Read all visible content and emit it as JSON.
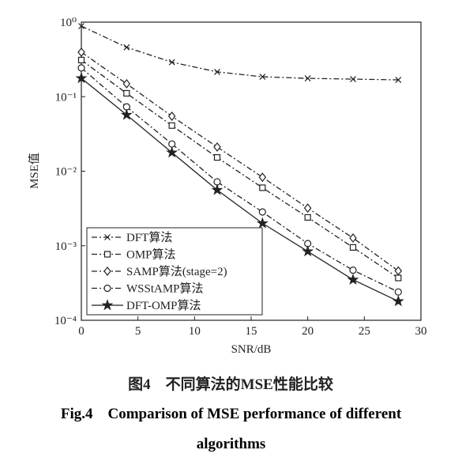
{
  "chart_data": {
    "type": "line",
    "x_label": "SNR/dB",
    "y_label": "MSE值",
    "log_y": true,
    "legend": "lower left",
    "caption_cn": "图4　不同算法的MSE性能比较",
    "caption_en": "Fig.4　Comparison of MSE performance of different algorithms",
    "x": [
      0,
      4,
      8,
      12,
      16,
      20,
      24,
      28
    ],
    "xlim": [
      0,
      30
    ],
    "xticks": [
      0,
      5,
      10,
      15,
      20,
      25,
      30
    ],
    "ylim": [
      0.0001,
      1
    ],
    "yticks": [
      {
        "value": 0.0001,
        "label": "10⁻⁴"
      },
      {
        "value": 0.001,
        "label": "10⁻³"
      },
      {
        "value": 0.01,
        "label": "10⁻²"
      },
      {
        "value": 0.1,
        "label": "10⁻¹"
      },
      {
        "value": 1,
        "label": "10⁰"
      }
    ],
    "series": [
      {
        "name": "DFT算法",
        "color": "#222",
        "marker": "x",
        "dash": "dashdot",
        "values": [
          0.885,
          0.46,
          0.29,
          0.215,
          0.185,
          0.176,
          0.172,
          0.168
        ]
      },
      {
        "name": "OMP算法",
        "color": "#222",
        "marker": "square",
        "dash": "dashdot",
        "values": [
          0.31,
          0.111,
          0.041,
          0.0153,
          0.006,
          0.0024,
          0.00095,
          0.00037
        ]
      },
      {
        "name": "SAMP算法(stage=2)",
        "color": "#222",
        "marker": "diamond",
        "dash": "dashdot",
        "values": [
          0.395,
          0.149,
          0.0546,
          0.0211,
          0.0083,
          0.0032,
          0.00127,
          0.00046
        ]
      },
      {
        "name": "WSStAMP算法",
        "color": "#222",
        "marker": "circle",
        "dash": "dashdot",
        "values": [
          0.243,
          0.073,
          0.0232,
          0.0072,
          0.00284,
          0.00107,
          0.00047,
          0.00024
        ]
      },
      {
        "name": "DFT-OMP算法",
        "color": "#222",
        "marker": "star",
        "dash": "solid",
        "values": [
          0.177,
          0.057,
          0.0178,
          0.0056,
          0.002,
          0.00084,
          0.00035,
          0.00018
        ]
      }
    ]
  }
}
